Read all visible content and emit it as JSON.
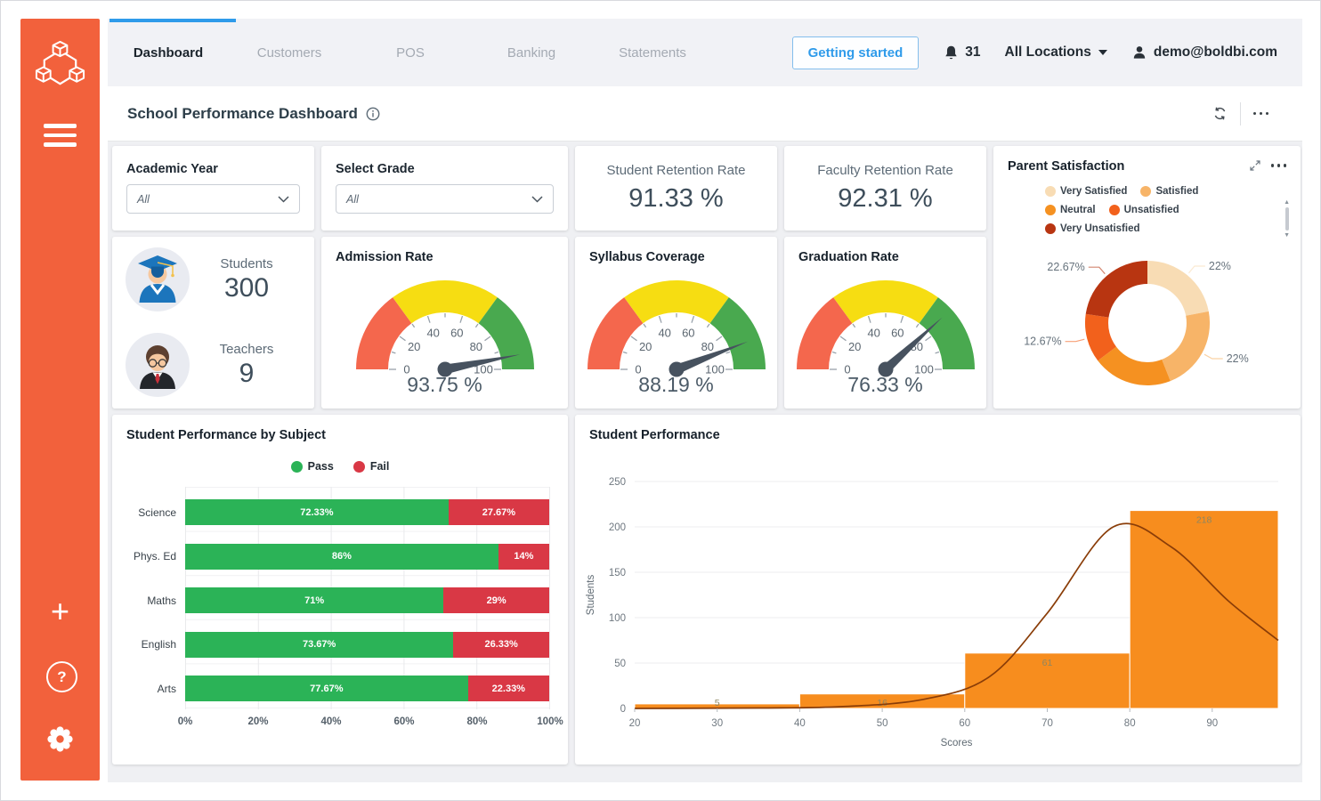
{
  "sidebar": {
    "color": "#F2613C",
    "icons": [
      "boldbi-logo",
      "menu-icon",
      "add-icon",
      "help-icon",
      "settings-icon"
    ]
  },
  "topnav": {
    "tabs": [
      {
        "label": "Dashboard",
        "active": true
      },
      {
        "label": "Customers",
        "active": false
      },
      {
        "label": "POS",
        "active": false
      },
      {
        "label": "Banking",
        "active": false
      },
      {
        "label": "Statements",
        "active": false
      }
    ],
    "getting_started_label": "Getting started",
    "notification_count": "31",
    "location_label": "All Locations",
    "user_email": "demo@boldbi.com"
  },
  "header": {
    "title": "School Performance Dashboard",
    "icons": [
      "info-icon",
      "refresh-icon",
      "more-icon"
    ]
  },
  "filters": [
    {
      "label": "Academic Year",
      "value": "All"
    },
    {
      "label": "Select Grade",
      "value": "All"
    }
  ],
  "kpis": [
    {
      "label": "Student Retention Rate",
      "value": "91.33 %"
    },
    {
      "label": "Faculty Retention Rate",
      "value": "92.31 %"
    }
  ],
  "counts": [
    {
      "label": "Students",
      "value": "300",
      "avatar": "student-avatar"
    },
    {
      "label": "Teachers",
      "value": "9",
      "avatar": "teacher-avatar"
    }
  ],
  "gauge_config": {
    "min": 0,
    "max": 100,
    "ticks": [
      0,
      20,
      40,
      60,
      80,
      100
    ],
    "bands": [
      {
        "from": 0,
        "to": 30,
        "color": "#F4674D"
      },
      {
        "from": 30,
        "to": 70,
        "color": "#F6DD12"
      },
      {
        "from": 70,
        "to": 100,
        "color": "#49A94F"
      }
    ],
    "needle_color": "#47525F"
  },
  "gauges": [
    {
      "title": "Admission Rate",
      "value": 93.75,
      "display": "93.75 %"
    },
    {
      "title": "Syllabus Coverage",
      "value": 88.19,
      "display": "88.19 %"
    },
    {
      "title": "Graduation Rate",
      "value": 76.33,
      "display": "76.33 %"
    }
  ],
  "chart_data": [
    {
      "name": "parent_satisfaction",
      "type": "pie",
      "donut": true,
      "title": "Parent Satisfaction",
      "legend_position": "top",
      "slices": [
        {
          "label": "Very Satisfied",
          "value": 22,
          "display": "22%",
          "color": "#F8DCB4"
        },
        {
          "label": "Satisfied",
          "value": 22,
          "display": "22%",
          "color": "#F7B468"
        },
        {
          "label": "Neutral",
          "value": 20.66,
          "display": "",
          "color": "#F59121"
        },
        {
          "label": "Unsatisfied",
          "value": 12.67,
          "display": "12.67%",
          "color": "#F2611C"
        },
        {
          "label": "Very Unsatisfied",
          "value": 22.67,
          "display": "22.67%",
          "color": "#B83511"
        }
      ]
    },
    {
      "name": "student_performance_by_subject",
      "type": "bar",
      "orientation": "horizontal",
      "stacked": true,
      "title": "Student Performance by Subject",
      "categories": [
        "Science",
        "Phys. Ed",
        "Maths",
        "English",
        "Arts"
      ],
      "series": [
        {
          "name": "Pass",
          "color": "#2BB357",
          "values": [
            72.33,
            86,
            71,
            73.67,
            77.67
          ],
          "labels": [
            "72.33%",
            "86%",
            "71%",
            "73.67%",
            "77.67%"
          ]
        },
        {
          "name": "Fail",
          "color": "#D93845",
          "values": [
            27.67,
            14,
            29,
            26.33,
            22.33
          ],
          "labels": [
            "27.67%",
            "14%",
            "29%",
            "26.33%",
            "22.33%"
          ]
        }
      ],
      "x_ticks": [
        "0%",
        "20%",
        "40%",
        "60%",
        "80%",
        "100%"
      ],
      "xlim": [
        0,
        100
      ],
      "grid": true
    },
    {
      "name": "student_performance",
      "type": "histogram",
      "title": "Student Performance",
      "xlabel": "Scores",
      "ylabel": "Students",
      "bins": [
        {
          "from": 20,
          "to": 40,
          "count": 5
        },
        {
          "from": 40,
          "to": 60,
          "count": 16
        },
        {
          "from": 60,
          "to": 80,
          "count": 61
        },
        {
          "from": 80,
          "to": 98,
          "count": 218
        }
      ],
      "curve": [
        [
          20,
          0
        ],
        [
          35,
          0.5
        ],
        [
          45,
          2
        ],
        [
          55,
          10
        ],
        [
          63,
          35
        ],
        [
          70,
          105
        ],
        [
          78,
          200
        ],
        [
          85,
          178
        ],
        [
          92,
          118
        ],
        [
          98,
          75
        ]
      ],
      "bar_color": "#F78D1E",
      "curve_color": "#8A3D08",
      "x_ticks": [
        20,
        30,
        40,
        50,
        60,
        70,
        80,
        90
      ],
      "y_ticks": [
        0,
        50,
        100,
        150,
        200,
        250
      ],
      "xlim": [
        20,
        98
      ],
      "ylim": [
        0,
        250
      ],
      "grid": true
    }
  ]
}
